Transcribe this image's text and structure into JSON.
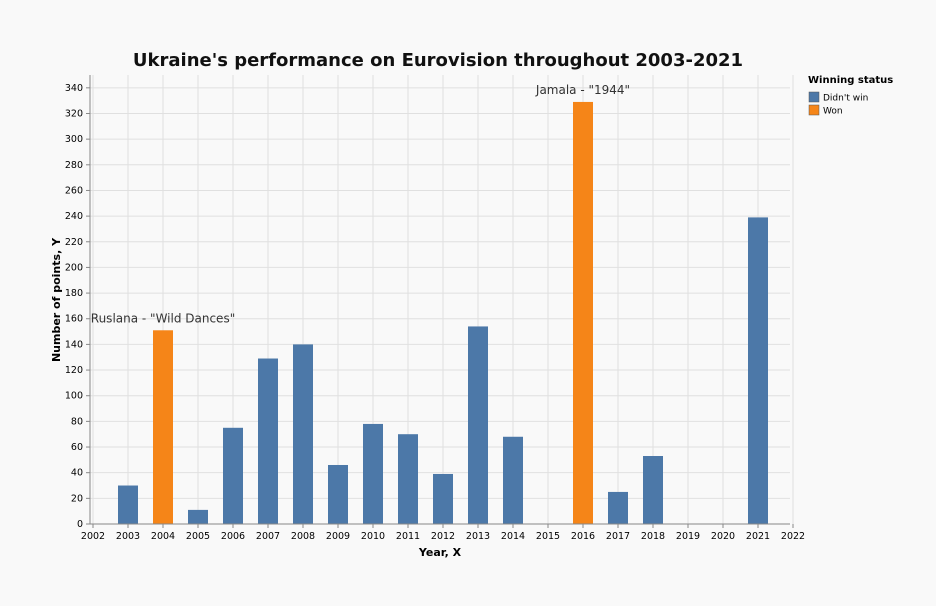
{
  "chart_data": {
    "type": "bar",
    "title": "Ukraine's performance on Eurovision throughout 2003-2021",
    "xlabel": "Year, X",
    "ylabel": "Number of points, Y",
    "xlim": [
      2002,
      2022
    ],
    "ylim": [
      0,
      350
    ],
    "x_ticks": [
      2002,
      2003,
      2004,
      2005,
      2006,
      2007,
      2008,
      2009,
      2010,
      2011,
      2012,
      2013,
      2014,
      2015,
      2016,
      2017,
      2018,
      2019,
      2020,
      2021,
      2022
    ],
    "y_ticks": [
      0,
      20,
      40,
      60,
      80,
      100,
      120,
      140,
      160,
      180,
      200,
      220,
      240,
      260,
      280,
      300,
      320,
      340
    ],
    "grid": true,
    "legend": {
      "title": "Winning status",
      "position": "top-right",
      "entries": [
        {
          "label": "Didn't win",
          "color": "#4c78a8"
        },
        {
          "label": "Won",
          "color": "#f58518"
        }
      ]
    },
    "data": [
      {
        "year": 2003,
        "points": 30,
        "status": "Didn't win"
      },
      {
        "year": 2004,
        "points": 151,
        "status": "Won"
      },
      {
        "year": 2005,
        "points": 11,
        "status": "Didn't win"
      },
      {
        "year": 2006,
        "points": 75,
        "status": "Didn't win"
      },
      {
        "year": 2007,
        "points": 129,
        "status": "Didn't win"
      },
      {
        "year": 2008,
        "points": 140,
        "status": "Didn't win"
      },
      {
        "year": 2009,
        "points": 46,
        "status": "Didn't win"
      },
      {
        "year": 2010,
        "points": 78,
        "status": "Didn't win"
      },
      {
        "year": 2011,
        "points": 70,
        "status": "Didn't win"
      },
      {
        "year": 2012,
        "points": 39,
        "status": "Didn't win"
      },
      {
        "year": 2013,
        "points": 154,
        "status": "Didn't win"
      },
      {
        "year": 2014,
        "points": 68,
        "status": "Didn't win"
      },
      {
        "year": 2016,
        "points": 329,
        "status": "Won"
      },
      {
        "year": 2017,
        "points": 25,
        "status": "Didn't win"
      },
      {
        "year": 2018,
        "points": 53,
        "status": "Didn't win"
      },
      {
        "year": 2021,
        "points": 239,
        "status": "Didn't win"
      }
    ],
    "annotations": [
      {
        "year": 2004,
        "text": "Ruslana - \"Wild Dances\""
      },
      {
        "year": 2016,
        "text": "Jamala - \"1944\""
      }
    ]
  }
}
